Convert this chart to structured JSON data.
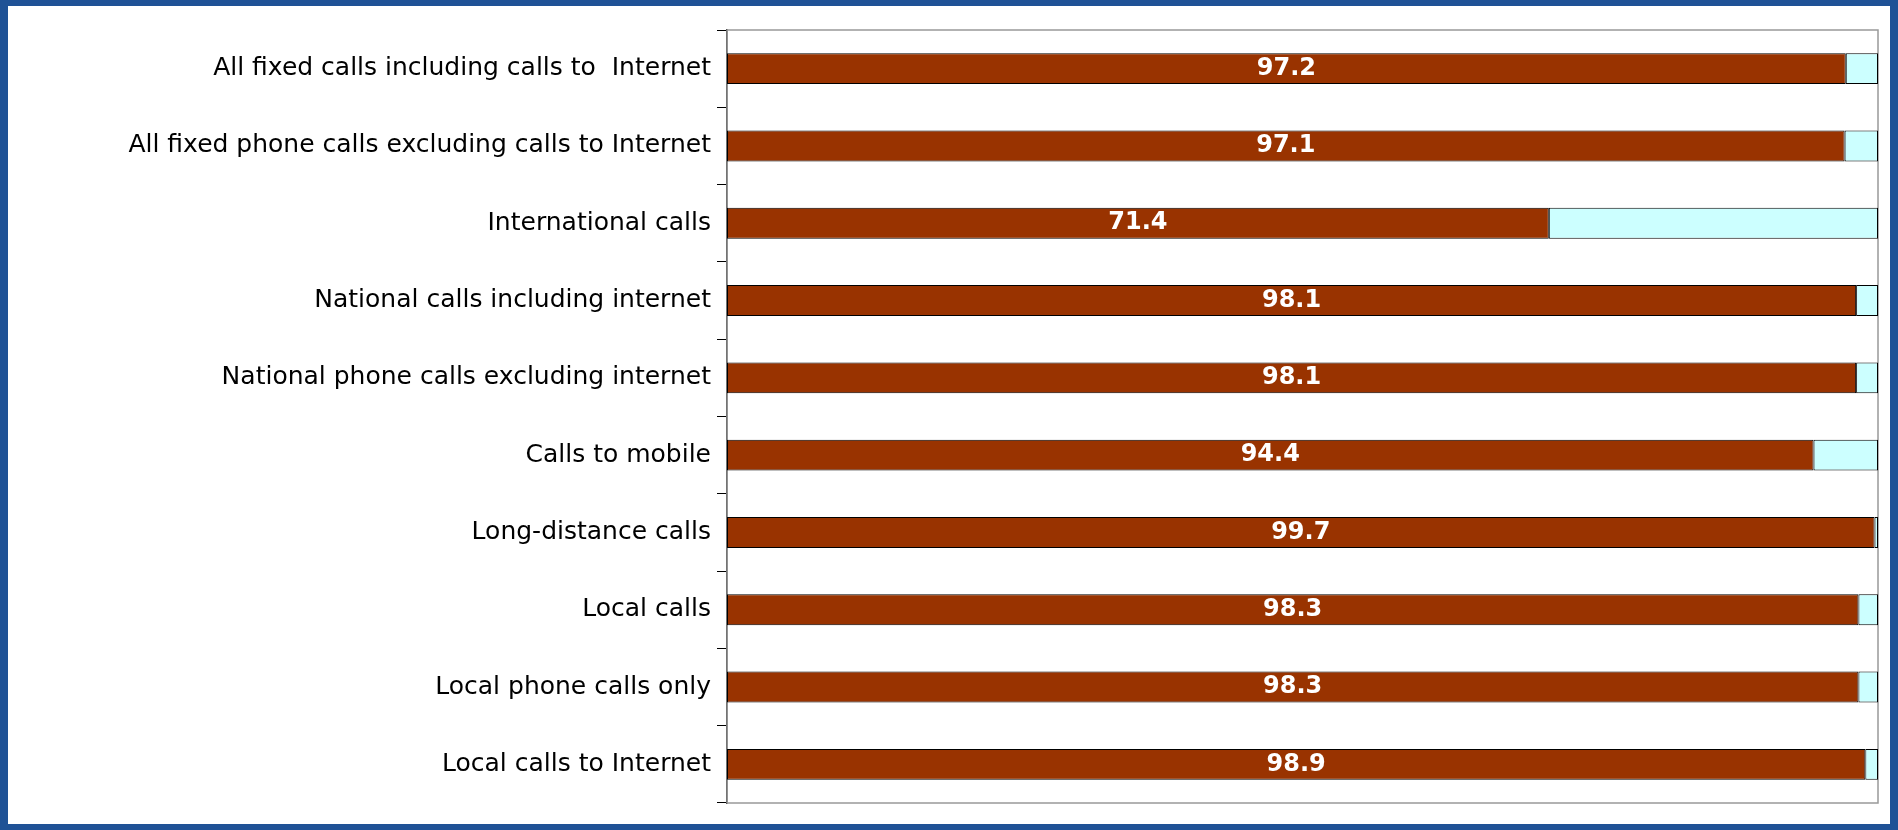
{
  "chart_data": {
    "type": "bar",
    "orientation": "horizontal",
    "stacked": true,
    "categories": [
      "All fixed calls including calls to  Internet",
      "All fixed phone calls excluding calls to Internet",
      "International calls",
      "National calls including internet",
      "National phone calls excluding internet",
      "Calls to mobile",
      "Long-distance calls",
      "Local calls",
      "Local phone calls only",
      "Local calls to Internet"
    ],
    "xlim": [
      0,
      100
    ],
    "tick_labels": "y",
    "grid": false,
    "legend": false,
    "series": [
      {
        "color": "#993300",
        "values": [
          97.2,
          97.1,
          71.4,
          98.1,
          98.1,
          94.4,
          99.7,
          98.3,
          98.3,
          98.9
        ],
        "value_labels": [
          "97.2",
          "97.1",
          "71.4",
          "98.1",
          "98.1",
          "94.4",
          "99.7",
          "98.3",
          "98.3",
          "98.9"
        ]
      },
      {
        "color": "#ccffff",
        "values": [
          2.8,
          2.9,
          28.6,
          1.9,
          1.9,
          5.6,
          0.3,
          1.7,
          1.7,
          1.1
        ]
      }
    ]
  }
}
